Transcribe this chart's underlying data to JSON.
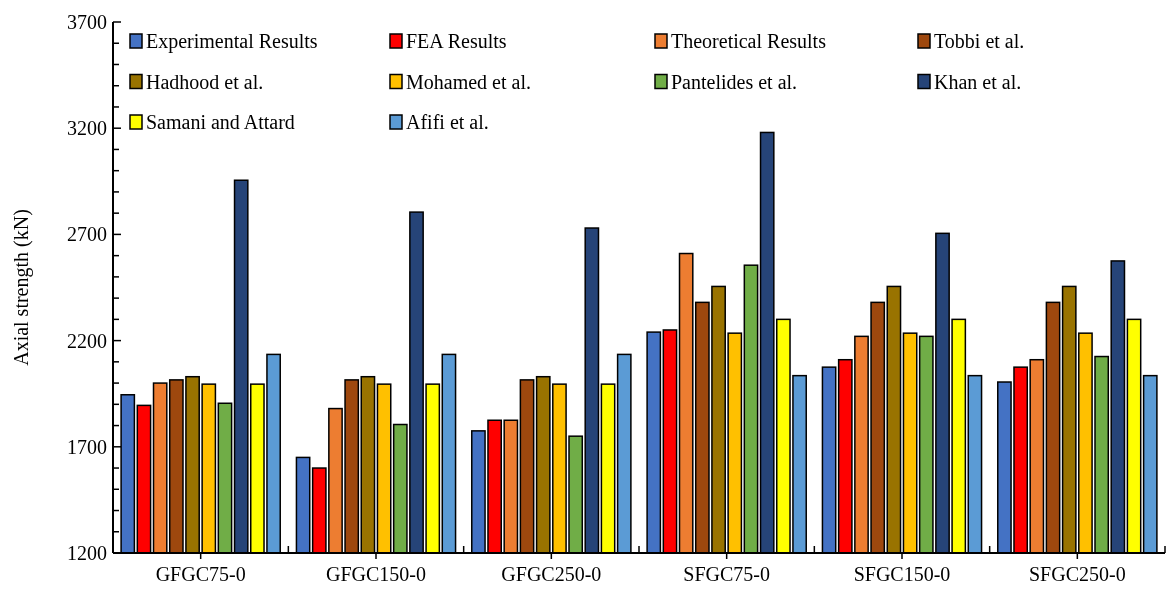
{
  "chart_data": {
    "type": "bar",
    "ylabel": "Axial strength (kN)",
    "categories": [
      "GFGC75-0",
      "GFGC150-0",
      "GFGC250-0",
      "SFGC75-0",
      "SFGC150-0",
      "SFGC250-0"
    ],
    "series": [
      {
        "name": "Experimental Results",
        "color": "#4472c4",
        "values": [
          1945,
          1650,
          1775,
          2240,
          2075,
          2005
        ]
      },
      {
        "name": "FEA Results",
        "color": "#ff0000",
        "values": [
          1895,
          1600,
          1825,
          2250,
          2110,
          2075
        ]
      },
      {
        "name": "Theoretical Results",
        "color": "#ed7d31",
        "values": [
          2000,
          1880,
          1825,
          2610,
          2220,
          2110
        ]
      },
      {
        "name": "Tobbi et al.",
        "color": "#9e480e",
        "values": [
          2015,
          2015,
          2015,
          2380,
          2380,
          2380
        ]
      },
      {
        "name": "Hadhood et al.",
        "color": "#997300",
        "values": [
          2030,
          2030,
          2030,
          2455,
          2455,
          2455
        ]
      },
      {
        "name": "Mohamed et al.",
        "color": "#ffc000",
        "values": [
          1995,
          1995,
          1995,
          2235,
          2235,
          2235
        ]
      },
      {
        "name": "Pantelides et al.",
        "color": "#70ad47",
        "values": [
          1905,
          1805,
          1750,
          2555,
          2220,
          2125
        ]
      },
      {
        "name": "Khan et al.",
        "color": "#264478",
        "values": [
          2955,
          2805,
          2730,
          3180,
          2705,
          2575
        ]
      },
      {
        "name": "Samani and Attard",
        "color": "#ffff00",
        "values": [
          1995,
          1995,
          1995,
          2300,
          2300,
          2300
        ]
      },
      {
        "name": "Afifi et al.",
        "color": "#5b9bd5",
        "values": [
          2135,
          2135,
          2135,
          2035,
          2035,
          2035
        ]
      }
    ],
    "ylim": [
      1200,
      3700
    ],
    "yticks": [
      1200,
      {
        "value": 1300,
        "label": null
      },
      {
        "value": 1400,
        "label": null
      },
      {
        "value": 1500,
        "label": null
      },
      {
        "value": 1600,
        "label": null
      },
      1700,
      {
        "value": 1800,
        "label": null
      },
      {
        "value": 1900,
        "label": null
      },
      {
        "value": 2000,
        "label": null
      },
      {
        "value": 2100,
        "label": null
      },
      2200,
      {
        "value": 2300,
        "label": null
      },
      {
        "value": 2400,
        "label": null
      },
      {
        "value": 2500,
        "label": null
      },
      {
        "value": 2600,
        "label": null
      },
      2700,
      {
        "value": 2800,
        "label": null
      },
      {
        "value": 2900,
        "label": null
      },
      {
        "value": 3000,
        "label": null
      },
      {
        "value": 3100,
        "label": null
      },
      3200,
      {
        "value": 3300,
        "label": null
      },
      {
        "value": 3400,
        "label": null
      },
      {
        "value": 3500,
        "label": null
      },
      {
        "value": 3600,
        "label": null
      },
      3700
    ],
    "legend": "top"
  }
}
